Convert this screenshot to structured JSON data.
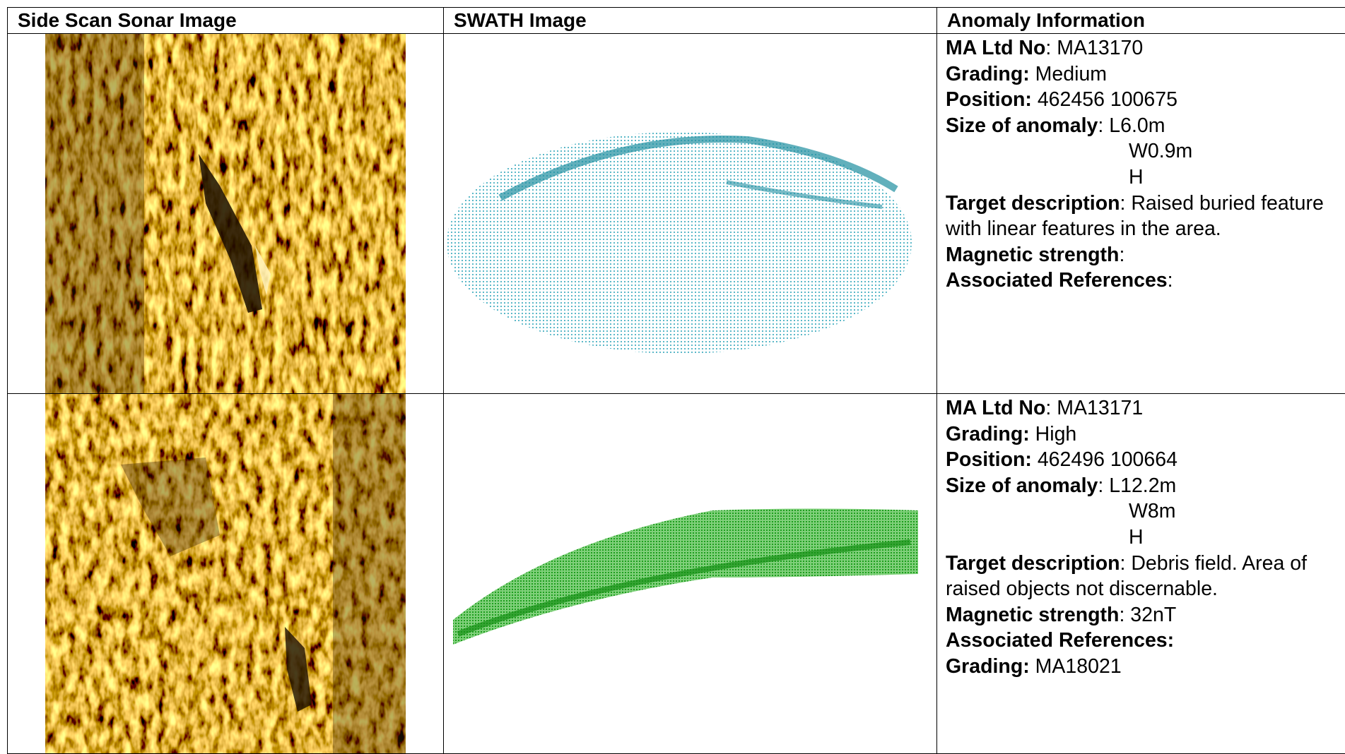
{
  "table": {
    "headers": [
      "Side Scan Sonar Image",
      "SWATH Image",
      "Anomaly Information"
    ],
    "rows": [
      {
        "info": [
          {
            "label": "MA Ltd No",
            "value": ": MA13170"
          },
          {
            "label": "Grading:",
            "value": " Medium"
          },
          {
            "label": "Position:",
            "value": " 462456 100675"
          },
          {
            "label": "Size of anomaly",
            "value": ": L6.0m",
            "more": [
              "W0.9m",
              "H"
            ]
          },
          {
            "label": "Target description",
            "value": ": Raised buried feature with linear features in the area."
          },
          {
            "label": "Magnetic strength",
            "value": ":"
          },
          {
            "label": "Associated References",
            "value": ":"
          }
        ]
      },
      {
        "info": [
          {
            "label": "MA Ltd No",
            "value": ": MA13171"
          },
          {
            "label": "Grading:",
            "value": " High"
          },
          {
            "label": "Position:",
            "value": " 462496 100664"
          },
          {
            "label": "Size of anomaly",
            "value": ": L12.2m",
            "more": [
              "W8m",
              "H"
            ]
          },
          {
            "label": "Target description",
            "value": ": Debris field. Area of raised objects not discernable."
          },
          {
            "label": "Magnetic strength",
            "value": ": 32nT"
          },
          {
            "label": "Associated References:",
            "value": ""
          },
          {
            "label": "Grading:",
            "value": " MA18021"
          }
        ]
      }
    ]
  }
}
